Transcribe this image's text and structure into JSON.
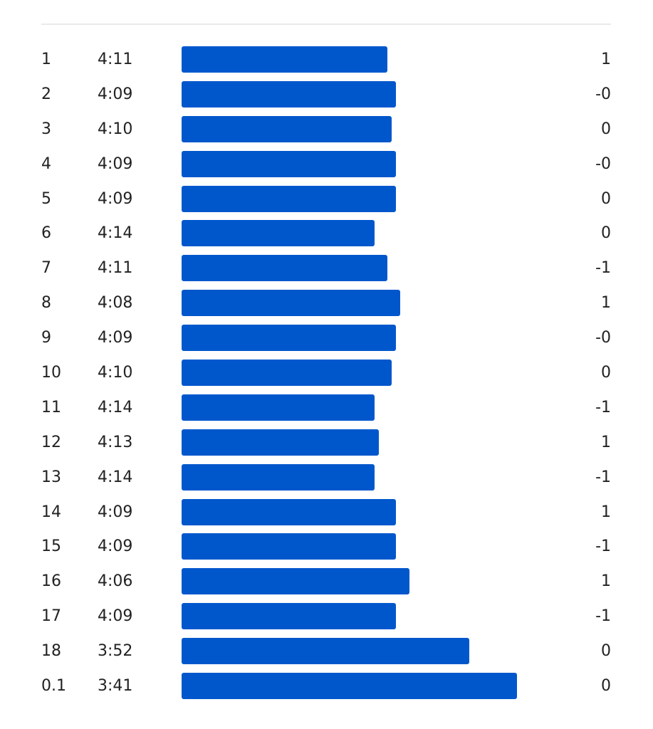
{
  "colors": {
    "bar": "#0057cc",
    "divider": "#e9e9e9",
    "text": "#222222"
  },
  "splits": [
    {
      "km": "1",
      "pace": "4:11",
      "pace_seconds": 251,
      "elev": "1"
    },
    {
      "km": "2",
      "pace": "4:09",
      "pace_seconds": 249,
      "elev": "-0"
    },
    {
      "km": "3",
      "pace": "4:10",
      "pace_seconds": 250,
      "elev": "0"
    },
    {
      "km": "4",
      "pace": "4:09",
      "pace_seconds": 249,
      "elev": "-0"
    },
    {
      "km": "5",
      "pace": "4:09",
      "pace_seconds": 249,
      "elev": "0"
    },
    {
      "km": "6",
      "pace": "4:14",
      "pace_seconds": 254,
      "elev": "0"
    },
    {
      "km": "7",
      "pace": "4:11",
      "pace_seconds": 251,
      "elev": "-1"
    },
    {
      "km": "8",
      "pace": "4:08",
      "pace_seconds": 248,
      "elev": "1"
    },
    {
      "km": "9",
      "pace": "4:09",
      "pace_seconds": 249,
      "elev": "-0"
    },
    {
      "km": "10",
      "pace": "4:10",
      "pace_seconds": 250,
      "elev": "0"
    },
    {
      "km": "11",
      "pace": "4:14",
      "pace_seconds": 254,
      "elev": "-1"
    },
    {
      "km": "12",
      "pace": "4:13",
      "pace_seconds": 253,
      "elev": "1"
    },
    {
      "km": "13",
      "pace": "4:14",
      "pace_seconds": 254,
      "elev": "-1"
    },
    {
      "km": "14",
      "pace": "4:09",
      "pace_seconds": 249,
      "elev": "1"
    },
    {
      "km": "15",
      "pace": "4:09",
      "pace_seconds": 249,
      "elev": "-1"
    },
    {
      "km": "16",
      "pace": "4:06",
      "pace_seconds": 246,
      "elev": "1"
    },
    {
      "km": "17",
      "pace": "4:09",
      "pace_seconds": 249,
      "elev": "-1"
    },
    {
      "km": "18",
      "pace": "3:52",
      "pace_seconds": 232,
      "elev": "0"
    },
    {
      "km": "0.1",
      "pace": "3:41",
      "pace_seconds": 221,
      "elev": "0"
    }
  ]
}
